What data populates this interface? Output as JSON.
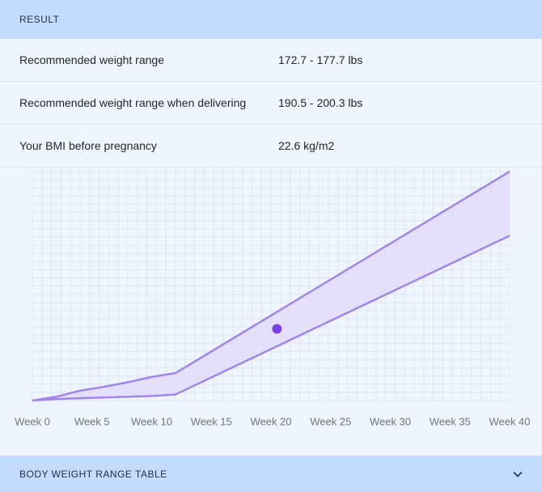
{
  "header": {
    "title": "RESULT"
  },
  "rows": [
    {
      "label": "Recommended weight range",
      "value": "172.7 - 177.7 lbs"
    },
    {
      "label": "Recommended weight range when delivering",
      "value": "190.5 - 200.3 lbs"
    },
    {
      "label": "Your BMI before pregnancy",
      "value": "22.6 kg/m2"
    }
  ],
  "chart_data": {
    "type": "area",
    "x": [
      0,
      2,
      4,
      6,
      8,
      10,
      12,
      40
    ],
    "series": [
      {
        "color": "#a384ee",
        "values": [
          0,
          0.5,
          1.3,
          1.8,
          2.4,
          3.1,
          3.6,
          30
        ]
      },
      {
        "color": "#a384ee",
        "values": [
          0,
          0.2,
          0.3,
          0.4,
          0.5,
          0.6,
          0.8,
          21.6
        ]
      }
    ],
    "fill": "#e2dbfb",
    "point": {
      "x": 20.5,
      "y": 9.4,
      "color": "#7a3fe8"
    },
    "xlim": [
      0,
      40
    ],
    "ylim": [
      0,
      30
    ],
    "xticks": [
      {
        "value": 0,
        "label": "Week 0"
      },
      {
        "value": 5,
        "label": "Week 5"
      },
      {
        "value": 10,
        "label": "Week 10"
      },
      {
        "value": 15,
        "label": "Week 15"
      },
      {
        "value": 20,
        "label": "Week 20"
      },
      {
        "value": 25,
        "label": "Week 25"
      },
      {
        "value": 30,
        "label": "Week 30"
      },
      {
        "value": 35,
        "label": "Week 35"
      },
      {
        "value": 40,
        "label": "Week 40"
      }
    ],
    "grid": true
  },
  "footer": {
    "title": "BODY WEIGHT RANGE TABLE"
  }
}
